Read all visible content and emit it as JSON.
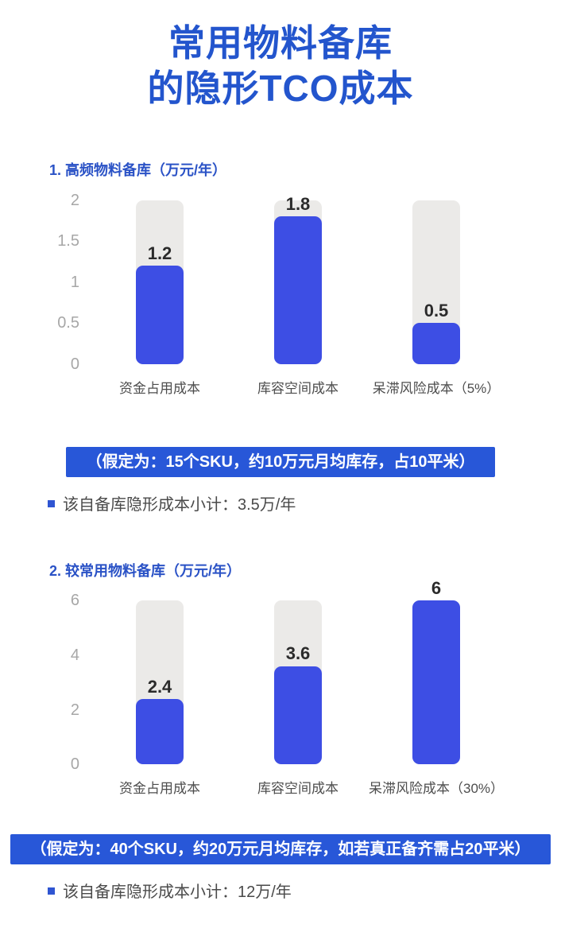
{
  "page": {
    "title_line1": "常用物料备库",
    "title_line2": "的隐形TCO成本"
  },
  "colors": {
    "page_bg": "#ffffff",
    "title_blue": "#2355cd",
    "section_blue": "#2a52c6",
    "bar_blue": "#3d4ee4",
    "banner_blue": "#2857d8",
    "track_gray": "#ebeae8",
    "tick_gray": "#a7a7a7",
    "value_dark": "#2b2b2b",
    "xlabel_gray": "#4d4d4d",
    "text_gray": "#4a4a4a",
    "bullet_blue": "#2f55d2"
  },
  "chart_data": [
    {
      "type": "bar",
      "title": "1. 高频物料备库（万元/年）",
      "categories": [
        "资金占用成本",
        "库容空间成本",
        "呆滞风险成本（5%）"
      ],
      "values": [
        1.2,
        1.8,
        0.5
      ],
      "xlabel": "",
      "ylabel": "万元/年",
      "ylim": [
        0,
        2
      ],
      "yticks": [
        0,
        0.5,
        1,
        1.5,
        2
      ],
      "grid": false,
      "legend": false,
      "style_note": "blue value bars on full-height light-gray rounded tracks, value labels above bar tops"
    },
    {
      "type": "bar",
      "title": "2. 较常用物料备库（万元/年）",
      "categories": [
        "资金占用成本",
        "库容空间成本",
        "呆滞风险成本（30%）"
      ],
      "values": [
        2.4,
        3.6,
        6
      ],
      "xlabel": "",
      "ylabel": "万元/年",
      "ylim": [
        0,
        6
      ],
      "yticks": [
        0,
        2,
        4,
        6
      ],
      "grid": false,
      "legend": false,
      "style_note": "blue value bars on full-height light-gray rounded tracks, value labels above bar tops"
    }
  ],
  "sections": [
    {
      "banner": "（假定为：15个SKU，约10万元月均库存，占10平米）",
      "summary": "该自备库隐形成本小计：3.5万/年"
    },
    {
      "banner": "（假定为：40个SKU，约20万元月均库存，如若真正备齐需占20平米）",
      "summary": "该自备库隐形成本小计：12万/年"
    }
  ]
}
